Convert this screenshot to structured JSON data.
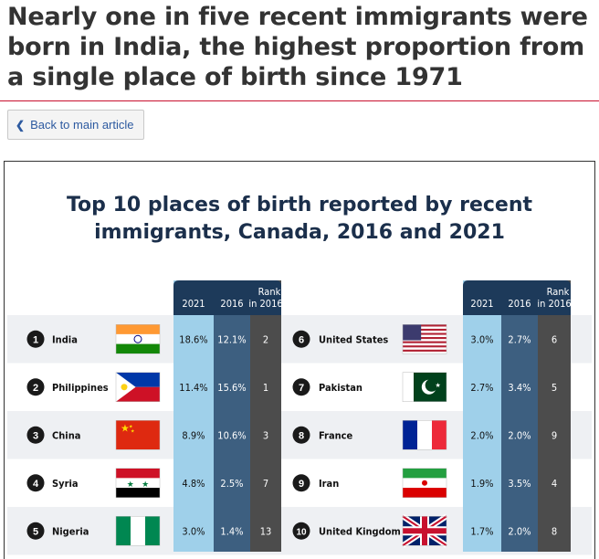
{
  "page": {
    "headline": "Nearly one in five recent immigrants were born in India, the highest proportion from a single place of birth since 1971",
    "back_button": "Back to main article"
  },
  "colors": {
    "navy": "#1d3a5a",
    "light_blue": "#9fd0ea",
    "mid_blue": "#3d5f80",
    "dark_gray": "#4c4c4c",
    "row_stripe": "#eef0f3",
    "badge": "#1a1a1a",
    "accent_rule": "#c8102e"
  },
  "chart_data": {
    "type": "table",
    "title": "Top 10 places of birth reported by recent immigrants, Canada, 2016 and 2021",
    "columns": [
      "2021",
      "2016",
      "Rank in 2016"
    ],
    "column_header_lines": [
      [
        "2021"
      ],
      [
        "2016"
      ],
      [
        "Rank",
        "in 2016"
      ]
    ],
    "rows": [
      {
        "rank": "1",
        "country": "India",
        "flag": "india-flag",
        "v2021": "18.6%",
        "v2016": "12.1%",
        "rank2016": "2"
      },
      {
        "rank": "2",
        "country": "Philippines",
        "flag": "philippines-flag",
        "v2021": "11.4%",
        "v2016": "15.6%",
        "rank2016": "1"
      },
      {
        "rank": "3",
        "country": "China",
        "flag": "china-flag",
        "v2021": "8.9%",
        "v2016": "10.6%",
        "rank2016": "3"
      },
      {
        "rank": "4",
        "country": "Syria",
        "flag": "syria-flag",
        "v2021": "4.8%",
        "v2016": "2.5%",
        "rank2016": "7"
      },
      {
        "rank": "5",
        "country": "Nigeria",
        "flag": "nigeria-flag",
        "v2021": "3.0%",
        "v2016": "1.4%",
        "rank2016": "13"
      },
      {
        "rank": "6",
        "country": "United States",
        "flag": "usa-flag",
        "v2021": "3.0%",
        "v2016": "2.7%",
        "rank2016": "6"
      },
      {
        "rank": "7",
        "country": "Pakistan",
        "flag": "pakistan-flag",
        "v2021": "2.7%",
        "v2016": "3.4%",
        "rank2016": "5"
      },
      {
        "rank": "8",
        "country": "France",
        "flag": "france-flag",
        "v2021": "2.0%",
        "v2016": "2.0%",
        "rank2016": "9"
      },
      {
        "rank": "9",
        "country": "Iran",
        "flag": "iran-flag",
        "v2021": "1.9%",
        "v2016": "3.5%",
        "rank2016": "4"
      },
      {
        "rank": "10",
        "country": "United Kingdom",
        "flag": "uk-flag",
        "v2021": "1.7%",
        "v2016": "2.0%",
        "rank2016": "8"
      }
    ]
  }
}
